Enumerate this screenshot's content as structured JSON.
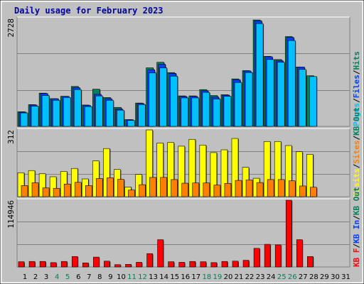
{
  "chart_data": {
    "type": "bar",
    "title": "Daily usage for February 2023",
    "categories": [
      "1",
      "2",
      "3",
      "4",
      "5",
      "6",
      "7",
      "8",
      "9",
      "10",
      "11",
      "12",
      "13",
      "14",
      "15",
      "16",
      "17",
      "18",
      "19",
      "20",
      "21",
      "22",
      "23",
      "24",
      "25",
      "26",
      "27",
      "28",
      "29",
      "30",
      "31"
    ],
    "weekend_days": [
      4,
      5,
      11,
      12,
      18,
      19,
      25,
      26
    ],
    "top": {
      "ymax_label": "2728",
      "ymax": 2728,
      "legend": [
        "Pages",
        "/",
        "Files",
        "/",
        "Hits"
      ],
      "legend_colors": [
        "#00c0ff",
        "#000000",
        "#0040ff",
        "#000000",
        "#00805a"
      ],
      "series": [
        {
          "name": "Hits",
          "color": "#00805a",
          "values": [
            370,
            550,
            840,
            700,
            760,
            1010,
            540,
            940,
            730,
            480,
            170,
            590,
            1480,
            1620,
            1360,
            770,
            770,
            930,
            780,
            800,
            1200,
            1410,
            2690,
            1770,
            1690,
            2270,
            1500,
            1280,
            null,
            null,
            null
          ]
        },
        {
          "name": "Files",
          "color": "#0040ff",
          "values": [
            360,
            540,
            830,
            700,
            760,
            980,
            530,
            810,
            700,
            440,
            170,
            580,
            1430,
            1570,
            1340,
            760,
            760,
            900,
            740,
            790,
            1180,
            1400,
            2670,
            1760,
            1660,
            2250,
            1500,
            null,
            null,
            null,
            null
          ]
        },
        {
          "name": "Pages",
          "color": "#00c0ff",
          "values": [
            340,
            510,
            780,
            660,
            730,
            930,
            500,
            770,
            660,
            410,
            150,
            550,
            1350,
            1480,
            1270,
            720,
            720,
            860,
            690,
            760,
            1110,
            1360,
            2600,
            1690,
            1620,
            2170,
            1440,
            1260,
            null,
            null,
            null
          ]
        }
      ]
    },
    "middle": {
      "ymax_label": "312",
      "ymax": 312,
      "legend": [
        "Visits",
        "/",
        "Sites",
        "/",
        "KB Out"
      ],
      "legend_colors": [
        "#ffff00",
        "#000000",
        "#ff8000",
        "#000000",
        "#00805a"
      ],
      "series": [
        {
          "name": "Visits",
          "color": "#ffff00",
          "values": [
            112,
            122,
            107,
            93,
            118,
            132,
            83,
            167,
            225,
            127,
            45,
            104,
            312,
            251,
            253,
            236,
            268,
            241,
            206,
            219,
            272,
            137,
            86,
            258,
            258,
            239,
            210,
            198,
            null,
            null,
            null
          ]
        },
        {
          "name": "Sites",
          "color": "#ff8000",
          "values": [
            52,
            65,
            41,
            39,
            59,
            67,
            52,
            85,
            88,
            81,
            31,
            56,
            90,
            90,
            80,
            63,
            64,
            64,
            54,
            62,
            76,
            78,
            66,
            80,
            80,
            74,
            50,
            44,
            null,
            null,
            null
          ]
        }
      ]
    },
    "bottom": {
      "ymax_label": "114946",
      "ymax": 114946,
      "legend": [
        "KB F",
        "/",
        "KB In",
        "/",
        "KB Out"
      ],
      "legend_colors": [
        "#ff0000",
        "#000000",
        "#0040ff",
        "#000000",
        "#00805a"
      ],
      "series": [
        {
          "name": "KB F",
          "color": "#ff0000",
          "values": [
            9000,
            9500,
            9500,
            7500,
            9500,
            18000,
            7000,
            17000,
            10000,
            4000,
            4500,
            8000,
            23000,
            47000,
            9000,
            8000,
            9500,
            9000,
            7500,
            9500,
            10000,
            11500,
            32000,
            39000,
            38000,
            114946,
            47000,
            18000,
            null,
            null,
            null
          ]
        }
      ]
    }
  }
}
